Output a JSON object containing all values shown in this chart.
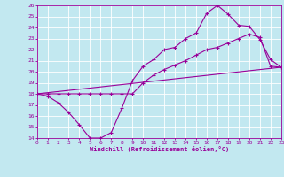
{
  "bg_color": "#c2e8f0",
  "grid_color": "#ffffff",
  "line_color": "#990099",
  "xlim": [
    0,
    23
  ],
  "ylim": [
    14,
    26
  ],
  "xticks": [
    0,
    1,
    2,
    3,
    4,
    5,
    6,
    7,
    8,
    9,
    10,
    11,
    12,
    13,
    14,
    15,
    16,
    17,
    18,
    19,
    20,
    21,
    22,
    23
  ],
  "yticks": [
    14,
    15,
    16,
    17,
    18,
    19,
    20,
    21,
    22,
    23,
    24,
    25,
    26
  ],
  "xlabel": "Windchill (Refroidissement éolien,°C)",
  "line1_x": [
    0,
    1,
    2,
    3,
    4,
    5,
    6,
    7,
    8,
    9,
    10,
    11,
    12,
    13,
    14,
    15,
    16,
    17,
    18,
    19,
    20,
    21,
    22,
    23
  ],
  "line1_y": [
    18.0,
    17.8,
    17.2,
    16.3,
    15.2,
    14.0,
    14.0,
    14.5,
    16.7,
    19.2,
    20.5,
    21.1,
    22.0,
    22.2,
    23.0,
    23.5,
    25.3,
    26.0,
    25.2,
    24.2,
    24.1,
    22.9,
    21.1,
    20.4
  ],
  "line2_x": [
    0,
    1,
    2,
    3,
    4,
    5,
    6,
    7,
    8,
    9,
    10,
    11,
    12,
    13,
    14,
    15,
    16,
    17,
    18,
    19,
    20,
    21,
    22,
    23
  ],
  "line2_y": [
    18.0,
    18.0,
    18.0,
    18.0,
    18.0,
    18.0,
    18.0,
    18.0,
    18.0,
    18.0,
    19.0,
    19.7,
    20.2,
    20.6,
    21.0,
    21.5,
    22.0,
    22.2,
    22.6,
    23.0,
    23.4,
    23.1,
    20.5,
    20.4
  ],
  "line3_x": [
    0,
    23
  ],
  "line3_y": [
    18.0,
    20.4
  ]
}
